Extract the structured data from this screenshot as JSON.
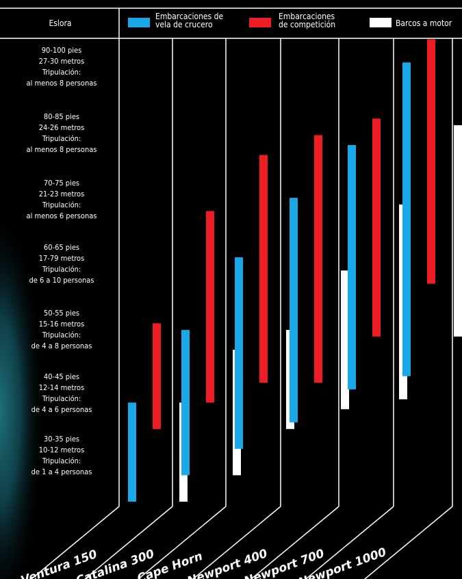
{
  "chart_data": {
    "type": "bar",
    "subtype": "floating-range",
    "title": "",
    "xlabel": "",
    "ylabel": "Eslora",
    "y_categories": [
      [
        "30-35 pies",
        "10-12 metros",
        "Tripulación:",
        "de 1 a 4 personas"
      ],
      [
        "40-45 pies",
        "12-14 metros",
        "Tripulación:",
        "de 4 a 6 personas"
      ],
      [
        "50-55 pies",
        "15-16 metros",
        "Tripulación:",
        "de 4 a 8 personas"
      ],
      [
        "60-65 pies",
        "17-79 metros",
        "Tripulación:",
        "de 6 a 10 personas"
      ],
      [
        "70-75 pies",
        "21-23 metros",
        "Tripulación:",
        "al menos 6 personas"
      ],
      [
        "80-85 pies",
        "24-26 metros",
        "Tripulación:",
        "al menos 8 personas"
      ],
      [
        "90-100 pies",
        "27-30 metros",
        "Tripulación:",
        "al menos 8 personas"
      ]
    ],
    "ylim": [
      0,
      7
    ],
    "categories": [
      "Ventura 150",
      "Catalina 300",
      "Cape Horn",
      "Newport 400",
      "Newport 700",
      "Newport 1000"
    ],
    "series": [
      {
        "name": "Embarcaciones de vela de crucero",
        "legend_lines": [
          "Embarcaciones de",
          "vela de crucero"
        ],
        "color": "#1aa9e8",
        "ranges": [
          [
            0,
            1.5
          ],
          [
            0.4,
            2.6
          ],
          [
            0.8,
            3.7
          ],
          [
            1.2,
            4.6
          ],
          [
            1.7,
            5.4
          ],
          [
            1.9,
            6.65
          ]
        ]
      },
      {
        "name": "Embarcaciones de competición",
        "legend_lines": [
          "Embarcaciones",
          "de competición"
        ],
        "color": "#ee1c24",
        "ranges": [
          [
            1.1,
            2.7
          ],
          [
            1.5,
            4.4
          ],
          [
            1.8,
            5.25
          ],
          [
            1.8,
            5.55
          ],
          [
            2.5,
            5.8
          ],
          [
            3.3,
            7.0
          ]
        ]
      },
      {
        "name": "Barcos a motor",
        "legend_lines": [
          "Barcos a motor"
        ],
        "color": "#ffffff",
        "ranges": [
          [
            0,
            1.5
          ],
          [
            0.4,
            2.3
          ],
          [
            1.1,
            2.6
          ],
          [
            1.4,
            3.5
          ],
          [
            1.55,
            4.5
          ],
          [
            2.5,
            5.7
          ]
        ]
      }
    ],
    "legend": "top"
  }
}
